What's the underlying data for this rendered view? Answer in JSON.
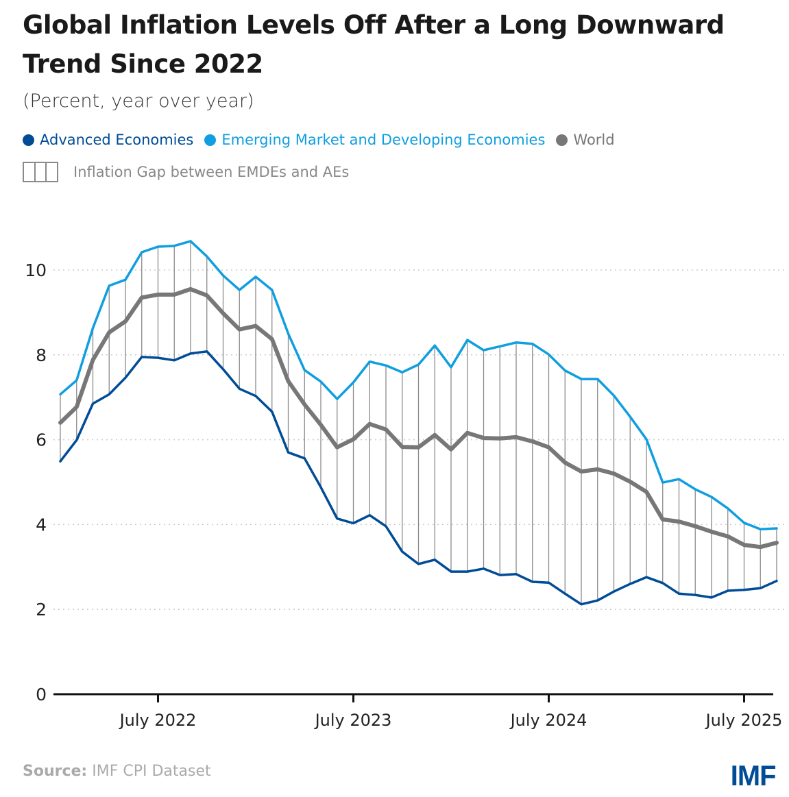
{
  "title": "Global Inflation Levels Off After a Long Downward Trend Since 2022",
  "subtitle": "(Percent, year over year)",
  "legend": [
    {
      "label": "Advanced Economies",
      "color": "#004c97"
    },
    {
      "label": "Emerging Market and Developing Economies",
      "color": "#0f9ee0"
    },
    {
      "label": "World",
      "color": "#777777"
    }
  ],
  "gap_legend": "Inflation Gap between EMDEs and AEs",
  "source_label": "Source:",
  "source_text": "IMF CPI Dataset",
  "logo": "IMF",
  "chart_data": {
    "type": "line",
    "title": "Global Inflation Levels Off After a Long Downward Trend Since 2022",
    "subtitle": "(Percent, year over year)",
    "xlabel": "",
    "ylabel": "",
    "x_start": "January 2022",
    "x_end": "September 2025",
    "frequency": "monthly",
    "x": [
      "Jan 2022",
      "Feb 2022",
      "Mar 2022",
      "Apr 2022",
      "May 2022",
      "Jun 2022",
      "Jul 2022",
      "Aug 2022",
      "Sep 2022",
      "Oct 2022",
      "Nov 2022",
      "Dec 2022",
      "Jan 2023",
      "Feb 2023",
      "Mar 2023",
      "Apr 2023",
      "May 2023",
      "Jun 2023",
      "Jul 2023",
      "Aug 2023",
      "Sep 2023",
      "Oct 2023",
      "Nov 2023",
      "Dec 2023",
      "Jan 2024",
      "Feb 2024",
      "Mar 2024",
      "Apr 2024",
      "May 2024",
      "Jun 2024",
      "Jul 2024",
      "Aug 2024",
      "Sep 2024",
      "Oct 2024",
      "Nov 2024",
      "Dec 2024",
      "Jan 2025",
      "Feb 2025",
      "Mar 2025",
      "Apr 2025",
      "May 2025",
      "Jun 2025",
      "Jul 2025",
      "Aug 2025",
      "Sep 2025"
    ],
    "x_ticks": [
      {
        "index": 6,
        "label": "July 2022"
      },
      {
        "index": 18,
        "label": "July 2023"
      },
      {
        "index": 30,
        "label": "July 2024"
      },
      {
        "index": 42,
        "label": "July 2025"
      }
    ],
    "y_ticks": [
      0,
      2,
      4,
      6,
      8,
      10
    ],
    "ylim": [
      0,
      11
    ],
    "grid": "horizontal-dotted",
    "legend_position": "top-left",
    "series": [
      {
        "name": "Emerging Market and Developing Economies",
        "color": "#0f9ee0",
        "values": [
          7.07,
          7.4,
          8.63,
          9.63,
          9.77,
          10.42,
          10.55,
          10.57,
          10.68,
          10.32,
          9.87,
          9.53,
          9.84,
          9.53,
          8.5,
          7.64,
          7.37,
          6.96,
          7.35,
          7.84,
          7.75,
          7.59,
          7.77,
          8.22,
          7.71,
          8.35,
          8.11,
          8.2,
          8.29,
          8.26,
          8.01,
          7.63,
          7.43,
          7.43,
          7.04,
          6.54,
          6.01,
          4.99,
          5.07,
          4.83,
          4.65,
          4.38,
          4.04,
          3.89,
          3.91
        ]
      },
      {
        "name": "World",
        "color": "#777777",
        "values": [
          6.4,
          6.77,
          7.88,
          8.53,
          8.79,
          9.35,
          9.42,
          9.42,
          9.55,
          9.4,
          8.98,
          8.6,
          8.68,
          8.37,
          7.38,
          6.83,
          6.35,
          5.82,
          6.01,
          6.37,
          6.24,
          5.83,
          5.82,
          6.11,
          5.77,
          6.16,
          6.04,
          6.03,
          6.06,
          5.96,
          5.82,
          5.46,
          5.25,
          5.3,
          5.2,
          5.01,
          4.77,
          4.12,
          4.07,
          3.96,
          3.83,
          3.72,
          3.52,
          3.47,
          3.57
        ]
      },
      {
        "name": "Advanced Economies",
        "color": "#004c97",
        "values": [
          5.49,
          5.99,
          6.85,
          7.07,
          7.46,
          7.95,
          7.93,
          7.87,
          8.03,
          8.08,
          7.66,
          7.2,
          7.03,
          6.66,
          5.7,
          5.56,
          4.88,
          4.14,
          4.03,
          4.22,
          3.96,
          3.36,
          3.07,
          3.17,
          2.89,
          2.89,
          2.96,
          2.81,
          2.83,
          2.65,
          2.63,
          2.37,
          2.12,
          2.21,
          2.42,
          2.6,
          2.76,
          2.62,
          2.37,
          2.34,
          2.28,
          2.44,
          2.46,
          2.5,
          2.67
        ]
      }
    ],
    "annotations": [
      "Vertical lines show inflation gap between EMDEs and AEs each month"
    ]
  }
}
